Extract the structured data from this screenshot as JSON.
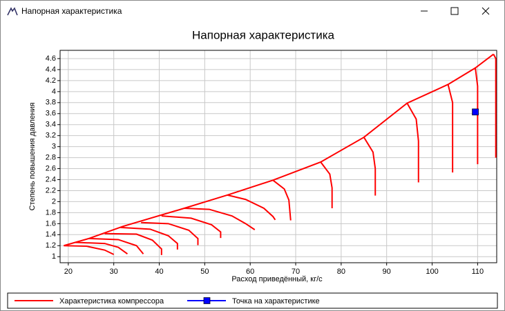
{
  "window": {
    "title": "Напорная характеристика"
  },
  "chart_data": {
    "type": "line",
    "title": "Напорная характеристика",
    "x_label": "Расход приведённый, кг/с",
    "y_label": "Степень повышения давления",
    "xlim": [
      18.2,
      114.2
    ],
    "ylim": [
      0.89,
      4.75
    ],
    "xticks": [
      20,
      30,
      40,
      50,
      60,
      70,
      80,
      90,
      100,
      110
    ],
    "yticks": [
      1,
      1.2,
      1.4,
      1.6,
      1.8,
      2,
      2.2,
      2.4,
      2.6,
      2.8,
      3,
      3.2,
      3.4,
      3.6,
      3.8,
      4,
      4.2,
      4.4,
      4.6
    ],
    "grid": true,
    "legend": "bottom",
    "series": [
      {
        "name": "Характеристика компрессора",
        "color": "#ff0000",
        "marker": "none",
        "x": [
          19,
          24.5,
          32,
          45.5,
          55,
          65,
          75.5,
          85,
          94.5,
          103.5,
          109.5,
          113.5,
          null,
          19,
          24,
          28,
          30,
          null,
          21.5,
          28,
          31,
          33,
          null,
          24.5,
          31,
          35,
          36.5,
          null,
          28,
          35,
          38.5,
          40.5,
          40.5,
          null,
          31.5,
          38,
          42,
          44,
          44,
          null,
          36,
          42,
          46.5,
          48.5,
          48.5,
          null,
          40.5,
          47,
          51.5,
          53.5,
          53.5,
          null,
          45.5,
          51,
          56,
          59,
          61,
          61,
          null,
          55,
          59,
          63,
          65,
          65.5,
          null,
          65,
          67.5,
          68.5,
          68.9,
          null,
          75.5,
          77.5,
          78,
          78,
          null,
          85,
          87,
          87.5,
          87.5,
          null,
          94.5,
          96.5,
          97,
          97,
          null,
          103.5,
          104.5,
          104.5,
          null,
          109.5,
          110,
          110,
          null,
          113.5,
          114,
          114
        ],
        "values": [
          1.2,
          1.33,
          1.55,
          1.88,
          2.12,
          2.39,
          2.72,
          3.17,
          3.79,
          4.13,
          4.43,
          4.68,
          null,
          1.2,
          1.19,
          1.12,
          1.04,
          null,
          1.26,
          1.24,
          1.17,
          1.05,
          null,
          1.33,
          1.31,
          1.2,
          1.05,
          null,
          1.42,
          1.41,
          1.3,
          1.14,
          1.03,
          null,
          1.53,
          1.5,
          1.38,
          1.24,
          1.13,
          null,
          1.62,
          1.6,
          1.48,
          1.33,
          1.21,
          null,
          1.74,
          1.7,
          1.58,
          1.45,
          1.34,
          null,
          1.88,
          1.86,
          1.74,
          1.6,
          1.49,
          1.49,
          null,
          2.12,
          2.04,
          1.88,
          1.73,
          1.67,
          null,
          2.39,
          2.23,
          2.03,
          1.66,
          null,
          2.72,
          2.5,
          2.25,
          1.88,
          null,
          3.17,
          2.9,
          2.6,
          2.11,
          null,
          3.79,
          3.5,
          3.1,
          2.35,
          null,
          4.13,
          3.8,
          2.53,
          null,
          4.43,
          4.1,
          2.68,
          null,
          4.68,
          4.6,
          2.8
        ]
      },
      {
        "name": "Точка на характеристике",
        "color": "#0000ff",
        "marker": "square",
        "x": [
          109.5
        ],
        "values": [
          3.63
        ]
      }
    ]
  }
}
